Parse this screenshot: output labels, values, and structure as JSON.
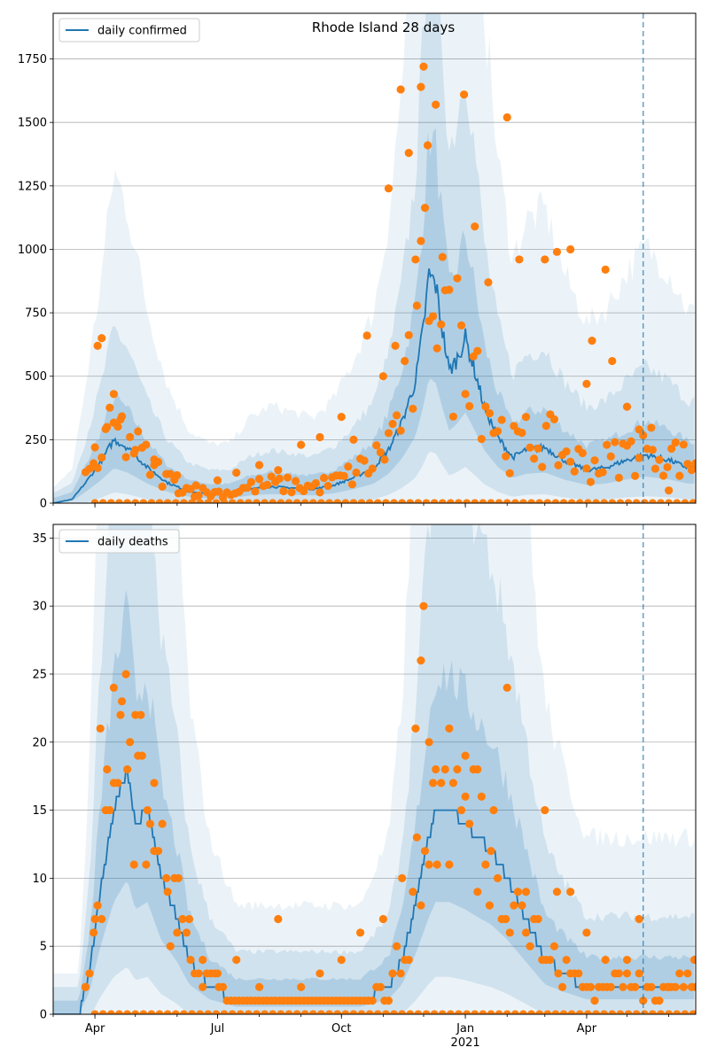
{
  "chart_data": [
    {
      "type": "line",
      "title": "Rhode Island 28 days",
      "xlabel": "",
      "ylabel": "",
      "ylim": [
        0,
        1930
      ],
      "yticks": [
        0,
        250,
        500,
        750,
        1000,
        1250,
        1500,
        1750
      ],
      "grid": "horizontal",
      "legend": {
        "position": "upper-left",
        "entries": [
          "daily confirmed"
        ]
      },
      "series": [
        {
          "name": "daily confirmed",
          "kind": "line",
          "x": [
            "2020-03-01",
            "2020-03-15",
            "2020-03-25",
            "2020-04-05",
            "2020-04-15",
            "2020-04-25",
            "2020-05-10",
            "2020-05-25",
            "2020-06-10",
            "2020-06-25",
            "2020-07-10",
            "2020-07-25",
            "2020-08-10",
            "2020-08-25",
            "2020-09-10",
            "2020-09-25",
            "2020-10-10",
            "2020-10-25",
            "2020-11-05",
            "2020-11-15",
            "2020-11-25",
            "2020-12-01",
            "2020-12-05",
            "2020-12-10",
            "2020-12-15",
            "2020-12-20",
            "2020-12-25",
            "2021-01-01",
            "2021-01-08",
            "2021-01-15",
            "2021-01-25",
            "2021-02-05",
            "2021-02-15",
            "2021-03-01",
            "2021-03-15",
            "2021-04-01",
            "2021-04-15",
            "2021-05-01",
            "2021-05-15",
            "2021-06-01",
            "2021-06-15",
            "2021-06-21"
          ],
          "y": [
            0,
            15,
            80,
            160,
            250,
            220,
            140,
            80,
            45,
            35,
            35,
            55,
            65,
            60,
            55,
            70,
            100,
            140,
            210,
            320,
            480,
            700,
            900,
            860,
            680,
            520,
            560,
            650,
            520,
            380,
            260,
            180,
            210,
            220,
            170,
            130,
            140,
            170,
            190,
            170,
            140,
            140
          ]
        },
        {
          "name": "",
          "kind": "scatter",
          "note": "reported daily values (orange dots)",
          "x": [
            "2020-04-01",
            "2020-04-03",
            "2020-04-06",
            "2020-04-10",
            "2020-04-15",
            "2020-04-20",
            "2020-05-01",
            "2020-05-15",
            "2020-06-01",
            "2020-06-15",
            "2020-07-01",
            "2020-07-15",
            "2020-08-01",
            "2020-08-15",
            "2020-09-01",
            "2020-09-15",
            "2020-10-01",
            "2020-10-10",
            "2020-10-20",
            "2020-11-01",
            "2020-11-05",
            "2020-11-10",
            "2020-11-14",
            "2020-11-20",
            "2020-11-25",
            "2020-11-29",
            "2020-12-01",
            "2020-12-04",
            "2020-12-10",
            "2020-12-15",
            "2020-12-31",
            "2021-01-08",
            "2021-01-18",
            "2021-02-01",
            "2021-02-10",
            "2021-03-01",
            "2021-03-10",
            "2021-03-20",
            "2021-04-01",
            "2021-04-05",
            "2021-04-15",
            "2021-04-20",
            "2021-05-01",
            "2021-05-10",
            "2021-05-20",
            "2021-06-01"
          ],
          "y": [
            220,
            620,
            650,
            300,
            430,
            330,
            210,
            150,
            110,
            70,
            90,
            120,
            150,
            130,
            230,
            260,
            340,
            250,
            660,
            500,
            1240,
            620,
            1630,
            1380,
            960,
            1640,
            1720,
            1410,
            1570,
            970,
            1610,
            1090,
            870,
            1520,
            960,
            960,
            990,
            1000,
            470,
            640,
            920,
            560,
            380,
            290,
            210,
            50
          ]
        }
      ]
    },
    {
      "type": "line",
      "title": "",
      "xlabel": "",
      "ylabel": "",
      "ylim": [
        0,
        36
      ],
      "yticks": [
        0,
        5,
        10,
        15,
        20,
        25,
        30,
        35
      ],
      "xticks": [
        {
          "label": "Apr",
          "sub": ""
        },
        {
          "label": "Jul",
          "sub": ""
        },
        {
          "label": "Oct",
          "sub": ""
        },
        {
          "label": "Jan",
          "sub": "2021"
        },
        {
          "label": "Apr",
          "sub": ""
        }
      ],
      "grid": "horizontal",
      "legend": {
        "position": "upper-left",
        "entries": [
          "daily deaths"
        ]
      },
      "series": [
        {
          "name": "daily deaths",
          "kind": "line",
          "x": [
            "2020-03-01",
            "2020-03-20",
            "2020-03-28",
            "2020-04-05",
            "2020-04-15",
            "2020-04-25",
            "2020-05-01",
            "2020-05-10",
            "2020-05-20",
            "2020-06-01",
            "2020-06-10",
            "2020-06-25",
            "2020-07-15",
            "2020-08-15",
            "2020-09-15",
            "2020-10-15",
            "2020-11-05",
            "2020-11-15",
            "2020-11-25",
            "2020-12-05",
            "2020-12-10",
            "2020-12-20",
            "2021-01-01",
            "2021-01-10",
            "2021-01-20",
            "2021-02-01",
            "2021-02-15",
            "2021-03-01",
            "2021-03-15",
            "2021-04-01",
            "2021-04-15",
            "2021-05-01",
            "2021-05-15",
            "2021-06-01",
            "2021-06-21"
          ],
          "y": [
            0,
            0,
            3,
            9,
            15,
            18,
            14,
            15,
            10,
            7,
            4,
            2,
            1,
            1,
            1,
            1,
            2,
            4,
            8,
            13,
            15,
            15,
            14,
            13,
            12,
            10,
            7,
            4,
            3,
            2,
            2,
            2,
            2,
            2,
            2
          ]
        },
        {
          "name": "",
          "kind": "scatter",
          "note": "reported daily values (orange dots)",
          "x": [
            "2020-03-25",
            "2020-04-01",
            "2020-04-05",
            "2020-04-10",
            "2020-04-15",
            "2020-04-20",
            "2020-04-25",
            "2020-05-01",
            "2020-05-05",
            "2020-05-10",
            "2020-05-15",
            "2020-05-25",
            "2020-06-01",
            "2020-06-10",
            "2020-06-20",
            "2020-07-01",
            "2020-07-15",
            "2020-08-01",
            "2020-08-15",
            "2020-09-01",
            "2020-09-15",
            "2020-10-01",
            "2020-10-15",
            "2020-11-01",
            "2020-11-15",
            "2020-11-25",
            "2020-11-29",
            "2020-12-01",
            "2020-12-05",
            "2020-12-10",
            "2020-12-20",
            "2021-01-01",
            "2021-01-10",
            "2021-01-20",
            "2021-02-01",
            "2021-02-15",
            "2021-03-01",
            "2021-03-10",
            "2021-03-20",
            "2021-04-01",
            "2021-04-15",
            "2021-05-01",
            "2021-05-10",
            "2021-06-01",
            "2021-06-20"
          ],
          "y": [
            2,
            7,
            21,
            18,
            24,
            22,
            18,
            22,
            22,
            15,
            12,
            9,
            6,
            7,
            4,
            3,
            4,
            2,
            7,
            2,
            3,
            4,
            6,
            7,
            10,
            21,
            26,
            30,
            20,
            18,
            21,
            19,
            18,
            12,
            24,
            9,
            15,
            9,
            9,
            6,
            4,
            4,
            7,
            2,
            4
          ]
        }
      ]
    }
  ]
}
